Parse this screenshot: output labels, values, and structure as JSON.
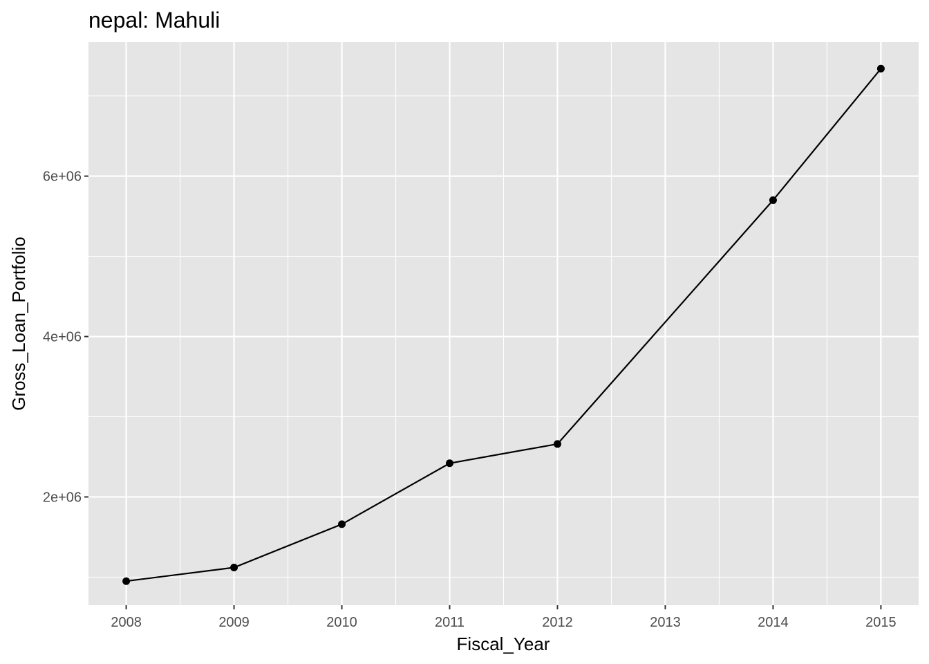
{
  "chart_data": {
    "type": "line",
    "title": "nepal:  Mahuli",
    "xlabel": "Fiscal_Year",
    "ylabel": "Gross_Loan_Portfolio",
    "x_ticks": [
      "2008",
      "2009",
      "2010",
      "2011",
      "2012",
      "2013",
      "2014",
      "2015"
    ],
    "y_ticks": [
      "2e+06",
      "4e+06",
      "6e+06"
    ],
    "x": [
      2008,
      2009,
      2010,
      2011,
      2012,
      2014,
      2015
    ],
    "y": [
      950000,
      1120000,
      1660000,
      2420000,
      2660000,
      5700000,
      7340000
    ],
    "xlim": [
      2007.65,
      2015.35
    ],
    "ylim": [
      650000,
      7670000
    ],
    "grid": true,
    "colors": {
      "panel": "#e5e5e5",
      "grid_major": "#ffffff",
      "line": "#000000",
      "point": "#000000",
      "tick_text": "#4d4d4d"
    }
  }
}
